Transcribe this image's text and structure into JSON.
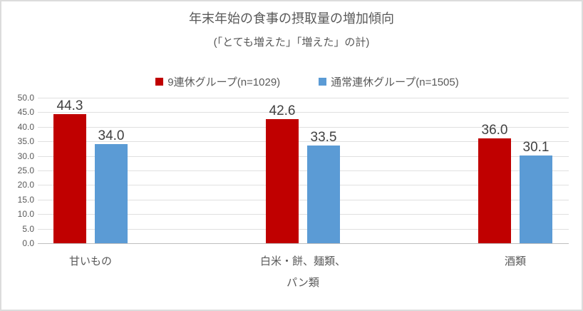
{
  "chart_data": {
    "type": "bar",
    "title": "年末年始の食事の摂取量の増加傾向",
    "subtitle": "(「とても増えた」「増えた」の計)",
    "categories": [
      "甘いもの",
      "白米・餅、麺類、\nパン類",
      "酒類"
    ],
    "series": [
      {
        "name": "9連休グループ(n=1029)",
        "color": "#C00000",
        "values": [
          44.3,
          42.6,
          36.0
        ]
      },
      {
        "name": "通常連休グループ(n=1505)",
        "color": "#5B9BD5",
        "values": [
          34.0,
          33.5,
          30.1
        ]
      }
    ],
    "xlabel": "",
    "ylabel": "",
    "ylim": [
      0,
      50
    ],
    "ytick_step": 5,
    "ytick_decimals": 1,
    "grid": true,
    "legend_position": "top-center",
    "value_labels": true,
    "value_label_decimals": 1,
    "colors": {
      "grid": "#E0E0E0",
      "axis": "#BFBFBF",
      "text": "#595959",
      "value_label": "#404040",
      "border": "#DCDCDC"
    }
  }
}
